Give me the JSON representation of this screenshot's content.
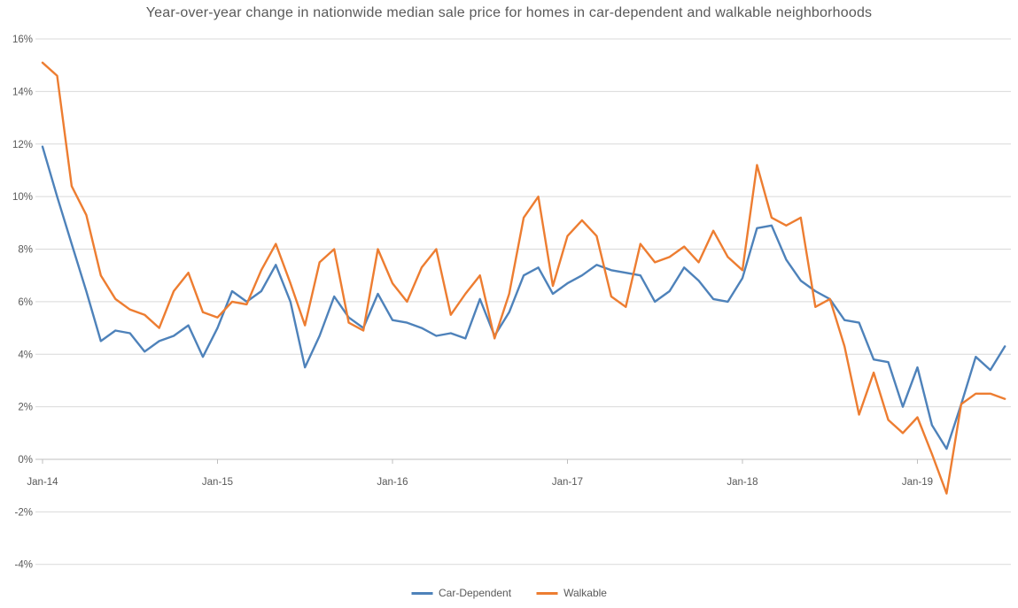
{
  "chart_data": {
    "type": "line",
    "title": "Year-over-year change in nationwide median sale price for homes in car-dependent and walkable neighborhoods",
    "x_start": "Jan-14",
    "x_frequency": "monthly",
    "x_ticks": [
      {
        "index": 0,
        "label": "Jan-14"
      },
      {
        "index": 12,
        "label": "Jan-15"
      },
      {
        "index": 24,
        "label": "Jan-16"
      },
      {
        "index": 36,
        "label": "Jan-17"
      },
      {
        "index": 48,
        "label": "Jan-18"
      },
      {
        "index": 60,
        "label": "Jan-19"
      }
    ],
    "y_ticks": [
      {
        "value": 16,
        "label": "16%"
      },
      {
        "value": 14,
        "label": "14%"
      },
      {
        "value": 12,
        "label": "12%"
      },
      {
        "value": 10,
        "label": "10%"
      },
      {
        "value": 8,
        "label": "8%"
      },
      {
        "value": 6,
        "label": "6%"
      },
      {
        "value": 4,
        "label": "4%"
      },
      {
        "value": 2,
        "label": "2%"
      },
      {
        "value": 0,
        "label": "0%"
      },
      {
        "value": -2,
        "label": "-2%"
      },
      {
        "value": -4,
        "label": "-4%"
      }
    ],
    "ylim": [
      -4,
      16
    ],
    "grid": "horizontal-only",
    "legend_position": "bottom-center",
    "colors": {
      "background": "#ffffff",
      "gridline": "#d9d9d9",
      "zero_line": "#bfbfbf",
      "tick_mark": "#bfbfbf",
      "axis_label": "#595959",
      "title": "#595959"
    },
    "series": [
      {
        "name": "Car-Dependent",
        "color": "#4e82ba",
        "values": [
          11.9,
          10.0,
          8.2,
          6.4,
          4.5,
          4.9,
          4.8,
          4.1,
          4.5,
          4.7,
          5.1,
          3.9,
          5.0,
          6.4,
          6.0,
          6.4,
          7.4,
          6.0,
          3.5,
          4.7,
          6.2,
          5.4,
          5.0,
          6.3,
          5.3,
          5.2,
          5.0,
          4.7,
          4.8,
          4.6,
          6.1,
          4.7,
          5.6,
          7.0,
          7.3,
          6.3,
          6.7,
          7.0,
          7.4,
          7.2,
          7.1,
          7.0,
          6.0,
          6.4,
          7.3,
          6.8,
          6.1,
          6.0,
          6.9,
          8.8,
          8.9,
          7.6,
          6.8,
          6.4,
          6.1,
          5.3,
          5.2,
          3.8,
          3.7,
          2.0,
          3.5,
          1.3,
          0.4,
          2.1,
          3.9,
          3.4,
          4.3
        ]
      },
      {
        "name": "Walkable",
        "color": "#ed7d31",
        "values": [
          15.1,
          14.6,
          10.4,
          9.3,
          7.0,
          6.1,
          5.7,
          5.5,
          5.0,
          6.4,
          7.1,
          5.6,
          5.4,
          6.0,
          5.9,
          7.2,
          8.2,
          6.7,
          5.1,
          7.5,
          8.0,
          5.2,
          4.9,
          8.0,
          6.7,
          6.0,
          7.3,
          8.0,
          5.5,
          6.3,
          7.0,
          4.6,
          6.3,
          9.2,
          10.0,
          6.6,
          8.5,
          9.1,
          8.5,
          6.2,
          5.8,
          8.2,
          7.5,
          7.7,
          8.1,
          7.5,
          8.7,
          7.7,
          7.2,
          11.2,
          9.2,
          8.9,
          9.2,
          5.8,
          6.1,
          4.3,
          1.7,
          3.3,
          1.5,
          1.0,
          1.6,
          0.2,
          -1.3,
          2.1,
          2.5,
          2.5,
          2.3
        ]
      }
    ]
  }
}
